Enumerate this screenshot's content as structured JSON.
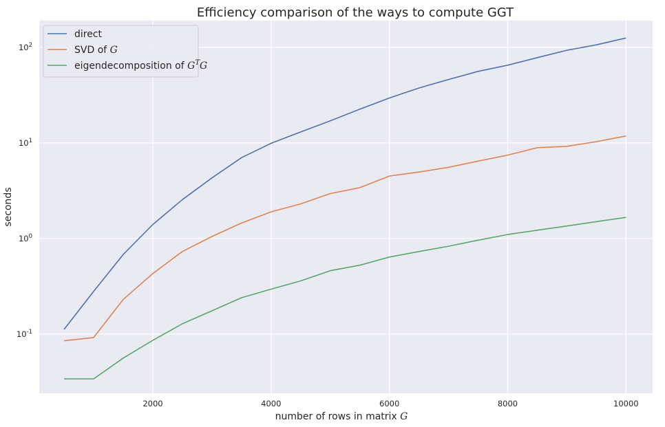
{
  "chart_data": {
    "type": "line",
    "title": "Efficiency comparison of the ways to compute GGT",
    "xlabel": "number of rows in matrix",
    "xlabel_var": "G",
    "ylabel": "seconds",
    "yscale": "log",
    "ylim": [
      0.024,
      190
    ],
    "xlim": [
      80,
      10450
    ],
    "grid": true,
    "legend_position": "top-left",
    "x_ticks": [
      2000,
      4000,
      6000,
      8000,
      10000
    ],
    "y_ticks": [
      {
        "base": "10",
        "exp": "-1",
        "value": 0.1
      },
      {
        "base": "10",
        "exp": "0",
        "value": 1
      },
      {
        "base": "10",
        "exp": "1",
        "value": 10
      },
      {
        "base": "10",
        "exp": "2",
        "value": 100
      }
    ],
    "x": [
      500,
      1000,
      1500,
      2000,
      2500,
      3000,
      3500,
      4000,
      4500,
      5000,
      5500,
      6000,
      6500,
      7000,
      7500,
      8000,
      8500,
      9000,
      9500,
      10000
    ],
    "series": [
      {
        "name": "direct",
        "legend_prefix": "direct",
        "legend_math": "",
        "legend_sup": "",
        "legend_math2": "",
        "color": "#4c72b0",
        "values": [
          0.112,
          0.28,
          0.68,
          1.4,
          2.55,
          4.3,
          7.0,
          9.9,
          13.0,
          17.0,
          22.5,
          29.5,
          37.5,
          46.0,
          56.0,
          65.0,
          78.0,
          93.0,
          106.0,
          125.0
        ]
      },
      {
        "name": "SVD of G",
        "legend_prefix": "SVD of ",
        "legend_math": "G",
        "legend_sup": "",
        "legend_math2": "",
        "color": "#dd8452",
        "values": [
          0.085,
          0.092,
          0.23,
          0.43,
          0.73,
          1.05,
          1.45,
          1.9,
          2.3,
          2.95,
          3.4,
          4.5,
          4.95,
          5.55,
          6.45,
          7.45,
          8.9,
          9.2,
          10.3,
          11.8
        ]
      },
      {
        "name": "eigendecomposition of G^T G",
        "legend_prefix": "eigendecomposition of ",
        "legend_math": "G",
        "legend_sup": "T",
        "legend_math2": "G",
        "color": "#55a868",
        "values": [
          0.034,
          0.034,
          0.056,
          0.086,
          0.128,
          0.175,
          0.24,
          0.295,
          0.36,
          0.46,
          0.525,
          0.64,
          0.73,
          0.83,
          0.96,
          1.1,
          1.22,
          1.35,
          1.5,
          1.66
        ]
      }
    ]
  }
}
